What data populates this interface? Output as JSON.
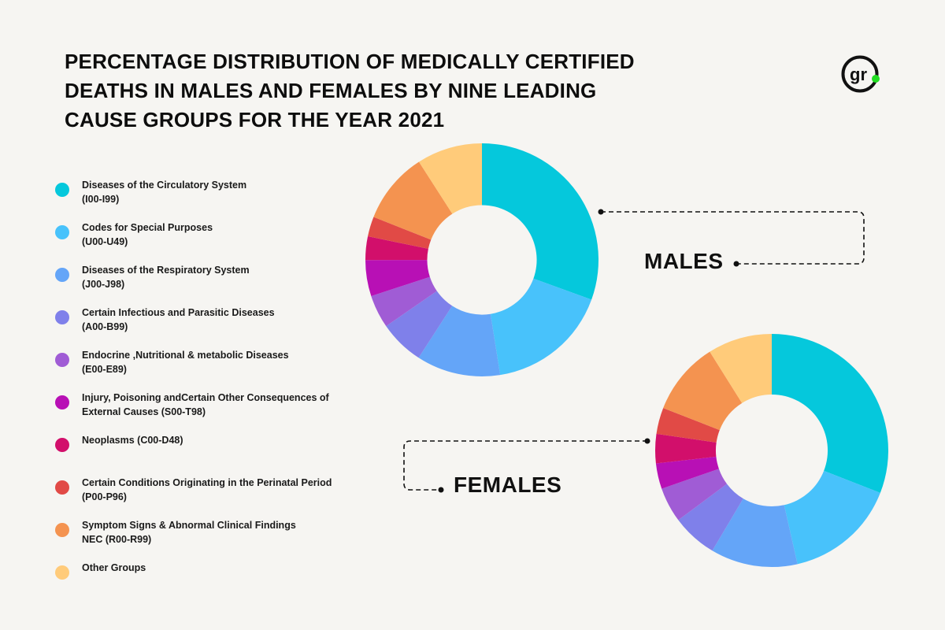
{
  "title": "PERCENTAGE DISTRIBUTION OF MEDICALLY CERTIFIED DEATHS IN MALES AND FEMALES BY NINE LEADING CAUSE GROUPS FOR THE YEAR 2021",
  "logo": {
    "text": "gr",
    "accent": "#22dd22"
  },
  "colors": {
    "accent_dot": "#22dd22",
    "text": "#111111",
    "background": "#f6f5f2"
  },
  "chart_data": [
    {
      "type": "pie",
      "name": "males",
      "label": "MALES",
      "categories": [
        "Diseases of the Circulatory System\n(I00-I99)",
        "Codes for Special Purposes\n(U00-U49)",
        "Diseases of the Respiratory System\n(J00-J98)",
        "Certain Infectious and Parasitic Diseases\n (A00-B99)",
        "Endocrine ,Nutritional & metabolic Diseases\n (E00-E89)",
        "Injury, Poisoning andCertain Other Consequences of\nExternal Causes (S00-T98)",
        "Neoplasms (C00-D48)",
        "Certain Conditions Originating in the Perinatal Period\n(P00-P96)",
        "Symptom Signs &  Abnormal Clinical Findings\nNEC (R00-R99)",
        "Other Groups"
      ],
      "values": [
        29.9,
        16.6,
        11.4,
        6.1,
        4.5,
        4.9,
        3.2,
        2.7,
        9.7,
        8.9
      ],
      "colors": [
        "#05c8dc",
        "#48c2fb",
        "#64a5f8",
        "#7f80ea",
        "#a05cd5",
        "#b810b5",
        "#d20f6b",
        "#e14a46",
        "#f49350",
        "#ffcb7a"
      ],
      "hole_ratio": 0.47
    },
    {
      "type": "pie",
      "name": "females",
      "label": "FEMALES",
      "categories": [
        "Diseases of the Circulatory System\n(I00-I99)",
        "Codes for Special Purposes\n(U00-U49)",
        "Diseases of the Respiratory System\n(J00-J98)",
        "Certain Infectious and Parasitic Diseases\n (A00-B99)",
        "Endocrine ,Nutritional & metabolic Diseases\n (E00-E89)",
        "Injury, Poisoning andCertain Other Consequences of\nExternal Causes (S00-T98)",
        "Neoplasms (C00-D48)",
        "Certain Conditions Originating in the Perinatal Period\n(P00-P96)",
        "Symptom Signs &  Abnormal Clinical Findings\nNEC (R00-R99)",
        "Other Groups"
      ],
      "values": [
        30.5,
        15.3,
        11.9,
        6.2,
        4.8,
        3.5,
        4.0,
        3.6,
        10.0,
        8.8
      ],
      "colors": [
        "#05c8dc",
        "#48c2fb",
        "#64a5f8",
        "#7f80ea",
        "#a05cd5",
        "#b810b5",
        "#d20f6b",
        "#e14a46",
        "#f49350",
        "#ffcb7a"
      ],
      "hole_ratio": 0.48
    }
  ]
}
